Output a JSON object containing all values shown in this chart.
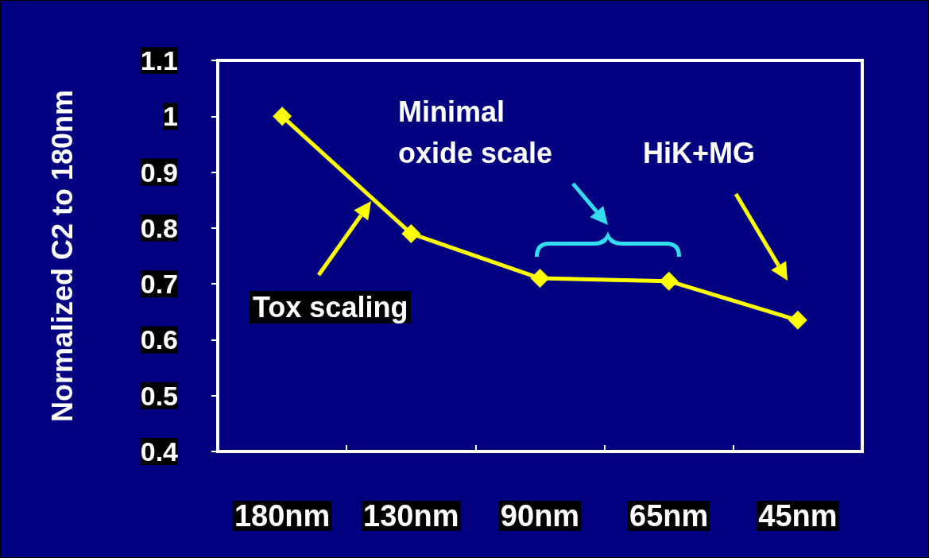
{
  "chart_data": {
    "type": "line",
    "ylabel": "Normalized C2 to 180nm",
    "categories": [
      "180nm",
      "130nm",
      "90nm",
      "65nm",
      "45nm"
    ],
    "series": [
      {
        "color": "#ffff00",
        "values": [
          1.0,
          0.79,
          0.71,
          0.705,
          0.635
        ]
      }
    ],
    "ylim": [
      0.4,
      1.1
    ],
    "yticks": [
      0.4,
      0.5,
      0.6,
      0.7,
      0.8,
      0.9,
      1,
      1.1
    ],
    "annotations": [
      "Tox scaling",
      "Minimal\noxide scale",
      "HiK+MG"
    ],
    "marker": "diamond",
    "line_style": "solid"
  }
}
